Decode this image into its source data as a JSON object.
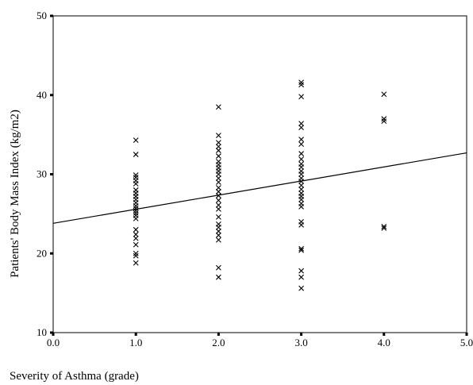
{
  "chart_data": {
    "type": "scatter",
    "title": "",
    "xlabel": "Severity of Asthma (grade)",
    "ylabel": "Patients' Body Mass Index (kg/m2)",
    "xlim": [
      0,
      5
    ],
    "ylim": [
      10,
      50
    ],
    "x_ticks": [
      "0.0",
      "1.0",
      "2.0",
      "3.0",
      "4.0",
      "5.0"
    ],
    "y_ticks": [
      "10",
      "20",
      "30",
      "40",
      "50"
    ],
    "grid": false,
    "legend": "none",
    "marker": "x",
    "series": [
      {
        "points": [
          [
            1,
            34.3
          ],
          [
            1,
            32.5
          ],
          [
            1,
            29.9
          ],
          [
            1,
            29.6
          ],
          [
            1,
            29.2
          ],
          [
            1,
            28.8
          ],
          [
            1,
            28.0
          ],
          [
            1,
            27.6
          ],
          [
            1,
            27.2
          ],
          [
            1,
            26.8
          ],
          [
            1,
            26.4
          ],
          [
            1,
            26.0
          ],
          [
            1,
            25.7
          ],
          [
            1,
            25.4
          ],
          [
            1,
            25.1
          ],
          [
            1,
            24.8
          ],
          [
            1,
            24.4
          ],
          [
            1,
            23.0
          ],
          [
            1,
            22.4
          ],
          [
            1,
            21.9
          ],
          [
            1,
            21.1
          ],
          [
            1,
            20.0
          ],
          [
            1,
            19.7
          ],
          [
            1,
            18.8
          ],
          [
            2,
            38.5
          ],
          [
            2,
            34.9
          ],
          [
            2,
            34.0
          ],
          [
            2,
            33.5
          ],
          [
            2,
            33.0
          ],
          [
            2,
            32.3
          ],
          [
            2,
            31.6
          ],
          [
            2,
            31.2
          ],
          [
            2,
            30.8
          ],
          [
            2,
            30.4
          ],
          [
            2,
            30.0
          ],
          [
            2,
            29.5
          ],
          [
            2,
            29.0
          ],
          [
            2,
            28.3
          ],
          [
            2,
            27.8
          ],
          [
            2,
            27.3
          ],
          [
            2,
            26.7
          ],
          [
            2,
            26.1
          ],
          [
            2,
            25.6
          ],
          [
            2,
            24.6
          ],
          [
            2,
            23.7
          ],
          [
            2,
            23.3
          ],
          [
            2,
            22.8
          ],
          [
            2,
            22.3
          ],
          [
            2,
            21.7
          ],
          [
            2,
            18.2
          ],
          [
            2,
            17.0
          ],
          [
            3,
            41.6
          ],
          [
            3,
            41.3
          ],
          [
            3,
            39.8
          ],
          [
            3,
            36.4
          ],
          [
            3,
            35.9
          ],
          [
            3,
            34.4
          ],
          [
            3,
            33.8
          ],
          [
            3,
            32.6
          ],
          [
            3,
            31.9
          ],
          [
            3,
            31.3
          ],
          [
            3,
            30.9
          ],
          [
            3,
            30.4
          ],
          [
            3,
            30.0
          ],
          [
            3,
            29.5
          ],
          [
            3,
            29.1
          ],
          [
            3,
            28.6
          ],
          [
            3,
            28.1
          ],
          [
            3,
            27.6
          ],
          [
            3,
            27.2
          ],
          [
            3,
            26.8
          ],
          [
            3,
            26.3
          ],
          [
            3,
            25.9
          ],
          [
            3,
            24.0
          ],
          [
            3,
            23.6
          ],
          [
            3,
            20.6
          ],
          [
            3,
            20.4
          ],
          [
            3,
            17.8
          ],
          [
            3,
            17.0
          ],
          [
            3,
            15.6
          ],
          [
            4,
            40.1
          ],
          [
            4,
            37.0
          ],
          [
            4,
            36.7
          ],
          [
            4,
            23.4
          ],
          [
            4,
            23.2
          ]
        ]
      }
    ],
    "regression_line": {
      "x": [
        0,
        5
      ],
      "y": [
        23.8,
        32.7
      ]
    }
  }
}
